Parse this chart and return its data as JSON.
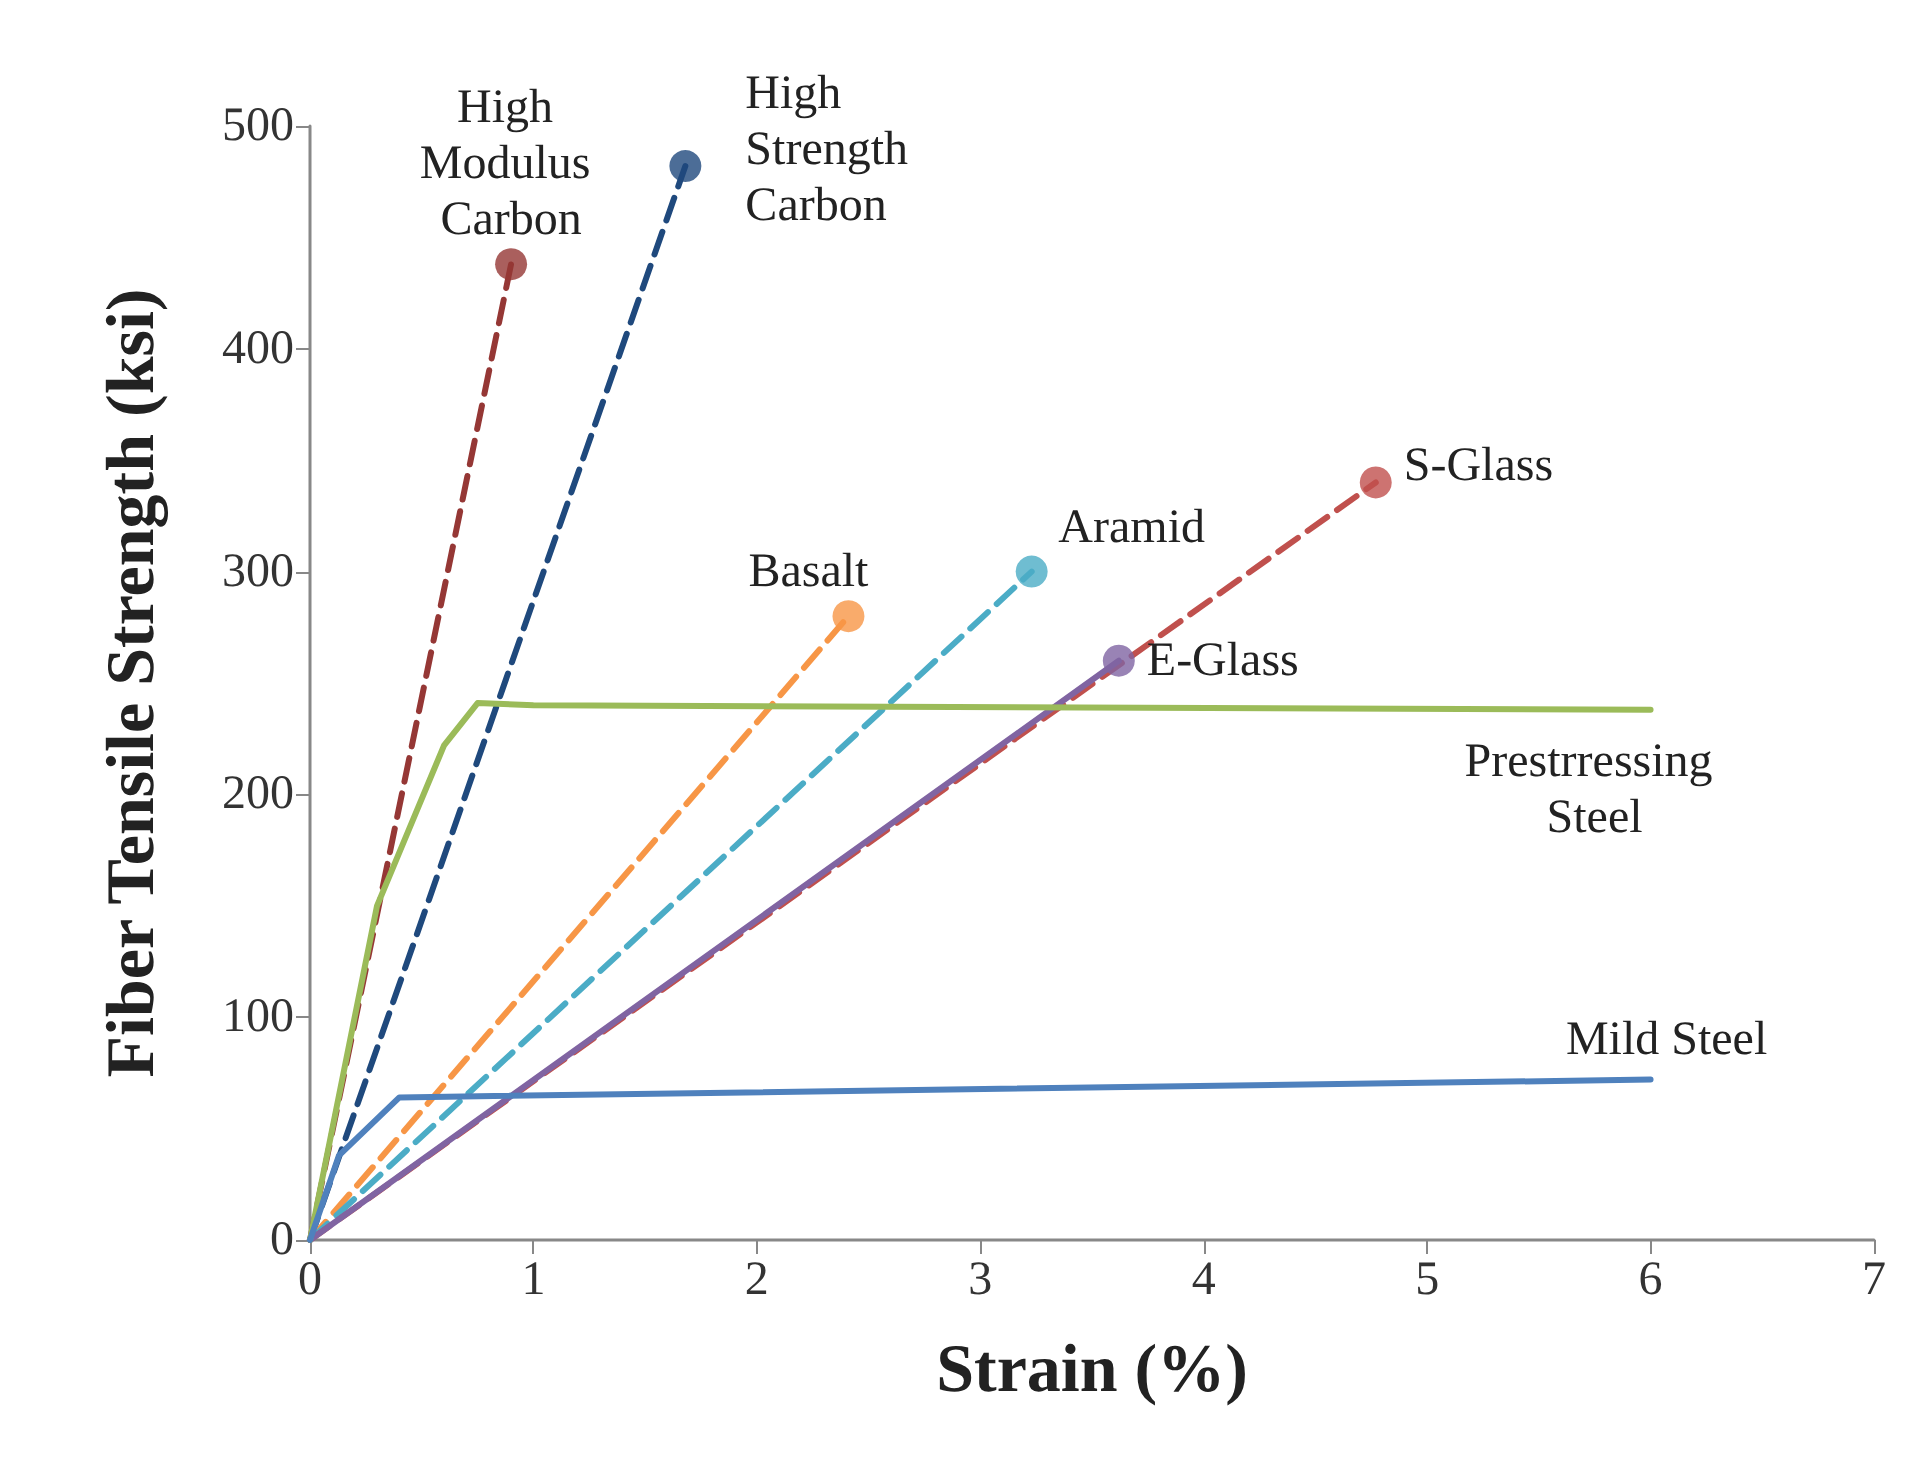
{
  "chart_data": {
    "type": "line",
    "xlabel": "Strain (%)",
    "ylabel": "Fiber Tensile Strength (ksi)",
    "xlim": [
      0,
      7
    ],
    "xticks": [
      0,
      1,
      2,
      3,
      4,
      5,
      6,
      7
    ],
    "ylim": [
      0,
      500
    ],
    "yticks": [
      0,
      100,
      200,
      300,
      400,
      500
    ],
    "grid": false,
    "legend": false,
    "series": [
      {
        "name": "High Modulus Carbon",
        "color": "#953735",
        "line_style": "dashed",
        "x": [
          0,
          0.9
        ],
        "values": [
          0,
          438
        ]
      },
      {
        "name": "High Strength Carbon",
        "color": "#1f497d",
        "line_style": "dashed",
        "x": [
          0,
          1.68
        ],
        "values": [
          0,
          482
        ]
      },
      {
        "name": "Basalt",
        "color": "#f79646",
        "line_style": "dashed",
        "x": [
          0,
          2.41
        ],
        "values": [
          0,
          280
        ]
      },
      {
        "name": "Aramid",
        "color": "#4bacc6",
        "line_style": "dashed",
        "x": [
          0,
          3.23
        ],
        "values": [
          0,
          300
        ]
      },
      {
        "name": "S-Glass",
        "color": "#c0504d",
        "line_style": "dashed",
        "x": [
          0,
          4.77
        ],
        "values": [
          0,
          340
        ]
      },
      {
        "name": "E-Glass",
        "color": "#8064a2",
        "line_style": "solid",
        "x": [
          0,
          3.62
        ],
        "values": [
          0,
          260
        ]
      },
      {
        "name": "Prestrressing Steel",
        "color": "#9bbb59",
        "line_style": "solid",
        "x": [
          0,
          0.3,
          0.6,
          0.75,
          1,
          6
        ],
        "values": [
          0,
          150,
          222,
          241,
          240,
          238
        ]
      },
      {
        "name": "Mild Steel",
        "color": "#4f81bd",
        "line_style": "solid",
        "x": [
          0,
          0.13,
          0.4,
          6
        ],
        "values": [
          0,
          38,
          64,
          72
        ]
      },
      {
        "type": "scatter",
        "marker": "circle",
        "x": [
          0.9,
          1.68,
          2.41,
          3.23,
          4.77,
          3.62
        ],
        "values": [
          438,
          482,
          280,
          300,
          340,
          260
        ],
        "colors": [
          "#953735",
          "#1f497d",
          "#f79646",
          "#4bacc6",
          "#c0504d",
          "#8064a2"
        ]
      }
    ]
  }
}
